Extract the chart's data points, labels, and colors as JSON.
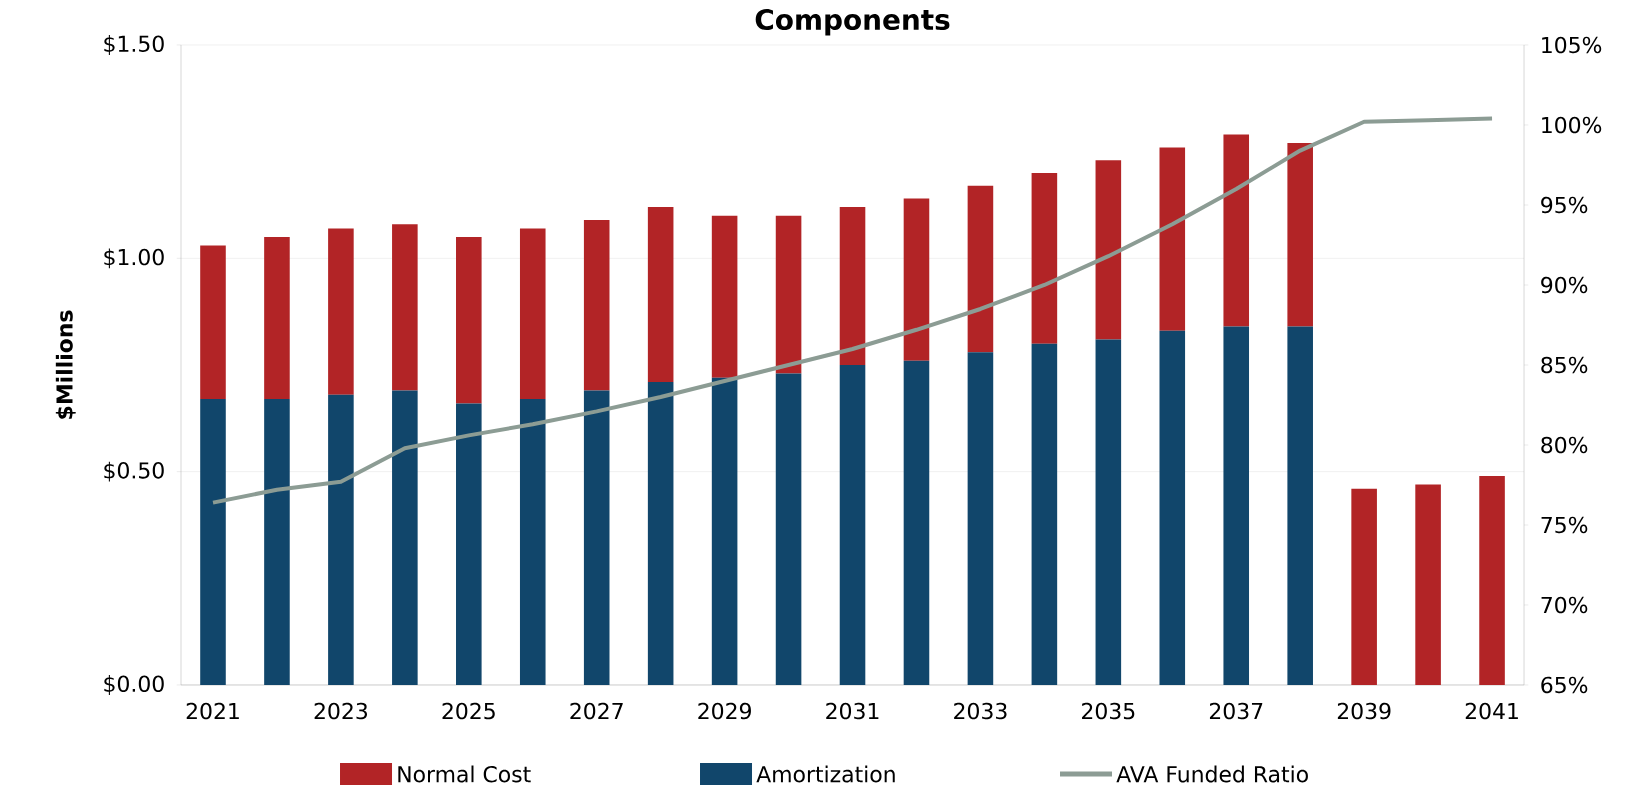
{
  "chart_data": {
    "type": "bar",
    "title": "Components",
    "ylabel": "$Millions",
    "stacked": true,
    "categories": [
      "2021",
      null,
      "2023",
      null,
      "2025",
      null,
      "2027",
      null,
      "2029",
      null,
      "2031",
      null,
      "2033",
      null,
      "2035",
      null,
      "2037",
      null,
      "2039",
      null,
      "2041"
    ],
    "series": [
      {
        "name": "Amortization",
        "color": "#11466b",
        "values": [
          0.67,
          0.67,
          0.68,
          0.69,
          0.66,
          0.67,
          0.69,
          0.71,
          0.72,
          0.73,
          0.75,
          0.76,
          0.78,
          0.8,
          0.81,
          0.83,
          0.84,
          0.84,
          0,
          0,
          0
        ]
      },
      {
        "name": "Normal Cost",
        "color": "#b22426",
        "values": [
          0.36,
          0.38,
          0.39,
          0.39,
          0.39,
          0.4,
          0.4,
          0.41,
          0.38,
          0.37,
          0.37,
          0.38,
          0.39,
          0.4,
          0.42,
          0.43,
          0.45,
          0.43,
          0.46,
          0.47,
          0.49
        ]
      },
      {
        "name": "AVA Funded Ratio",
        "type": "line",
        "axis": "y2",
        "color": "#8c9c94",
        "line_style": "solid",
        "values": [
          76.4,
          77.2,
          77.7,
          79.8,
          80.6,
          81.3,
          82.1,
          83.0,
          84.0,
          85.0,
          86.0,
          87.2,
          88.5,
          90.0,
          91.8,
          93.8,
          96.0,
          98.4,
          100.2,
          100.3,
          100.4
        ]
      }
    ],
    "ylim": [
      0,
      1.5
    ],
    "yticks": [
      {
        "value": 0,
        "label": "$0.00"
      },
      {
        "value": 0.5,
        "label": "$0.50"
      },
      {
        "value": 1.0,
        "label": "$1.00"
      },
      {
        "value": 1.5,
        "label": "$1.50"
      }
    ],
    "y2lim": [
      65,
      105
    ],
    "y2ticks": [
      {
        "value": 65,
        "label": "65%"
      },
      {
        "value": 70,
        "label": "70%"
      },
      {
        "value": 75,
        "label": "75%"
      },
      {
        "value": 80,
        "label": "80%"
      },
      {
        "value": 85,
        "label": "85%"
      },
      {
        "value": 90,
        "label": "90%"
      },
      {
        "value": 95,
        "label": "95%"
      },
      {
        "value": 100,
        "label": "100%"
      },
      {
        "value": 105,
        "label": "105%"
      }
    ],
    "grid": "y",
    "legend": "bottom",
    "marker": "none"
  }
}
